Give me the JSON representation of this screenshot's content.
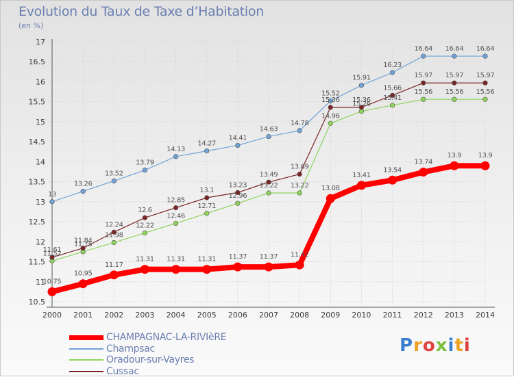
{
  "header": {
    "title": "Evolution du Taux de Taxe d’Habitation",
    "subtitle": "(en %)"
  },
  "logo": {
    "text": "Proxiti",
    "colors": [
      "#3a7fd0",
      "#f0a020",
      "#e04040",
      "#7ac040"
    ]
  },
  "chart_data": {
    "type": "line",
    "x": [
      "2000",
      "2001",
      "2002",
      "2003",
      "2004",
      "2005",
      "2006",
      "2007",
      "2008",
      "2009",
      "2010",
      "2011",
      "2012",
      "2013",
      "2014"
    ],
    "ylim": [
      10.5,
      17
    ],
    "yticks": [
      10.5,
      11,
      11.5,
      12,
      12.5,
      13,
      13.5,
      14,
      14.5,
      15,
      15.5,
      16,
      16.5,
      17
    ],
    "grid": true,
    "legend_position": "bottom-left",
    "series": [
      {
        "name": "CHAMPAGNAC-LA-RIVIèRE",
        "color": "#ff0000",
        "width": 8,
        "values": [
          10.75,
          10.95,
          11.17,
          11.31,
          11.31,
          11.31,
          11.37,
          11.37,
          11.42,
          13.08,
          13.41,
          13.54,
          13.74,
          13.9,
          13.9
        ],
        "labels": [
          "10.75",
          "10.95",
          "11.17",
          "11.31",
          "11.31",
          "11.31",
          "11.37",
          "11.37",
          "11.42",
          "13.08",
          "13.41",
          "13.54",
          "13.74",
          "13.9",
          "13.9"
        ]
      },
      {
        "name": "Champsac",
        "color": "#6fa3d8",
        "width": 1.2,
        "values": [
          13,
          13.26,
          13.52,
          13.79,
          14.13,
          14.27,
          14.41,
          14.63,
          14.78,
          15.52,
          15.91,
          16.23,
          16.64,
          16.64,
          16.64
        ],
        "labels": [
          "13",
          "13.26",
          "13.52",
          "13.79",
          "14.13",
          "14.27",
          "14.41",
          "14.63",
          "14.78",
          "15.52",
          "15.91",
          "16.23",
          "16.64",
          "16.64",
          "16.64"
        ]
      },
      {
        "name": "Oradour-sur-Vayres",
        "color": "#8ed45a",
        "width": 1.2,
        "values": [
          11.52,
          11.75,
          11.98,
          12.22,
          12.46,
          12.71,
          12.96,
          13.22,
          13.22,
          14.96,
          15.26,
          15.41,
          15.56,
          15.56,
          15.56
        ],
        "labels": [
          "11.52",
          "11.75",
          "11.98",
          "12.22",
          "12.46",
          "12.71",
          "12.96",
          "13.22",
          "13.22",
          "14.96",
          "15.26",
          "15.41",
          "15.56",
          "15.56",
          "15.56"
        ]
      },
      {
        "name": "Cussac",
        "color": "#7a2424",
        "width": 1.2,
        "values": [
          11.61,
          11.84,
          12.24,
          12.6,
          12.85,
          13.1,
          13.23,
          13.49,
          13.69,
          15.36,
          15.36,
          15.66,
          15.97,
          15.97,
          15.97
        ],
        "labels": [
          "11.61",
          "11.84",
          "12.24",
          "12.6",
          "12.85",
          "13.1",
          "13.23",
          "13.49",
          "13.69",
          "15.36",
          "15.36",
          "15.66",
          "15.97",
          "15.97",
          "15.97"
        ]
      }
    ]
  }
}
